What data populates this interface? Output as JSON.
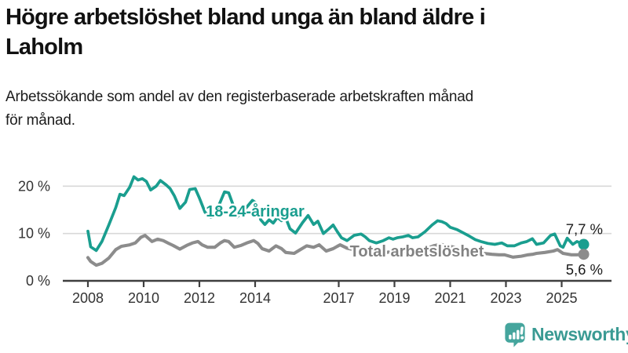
{
  "header": {
    "title_lines": [
      "Högre arbetslöshet bland unga än bland äldre i",
      "Laholm"
    ],
    "subtitle_lines": [
      "Arbetssökande som andel av den registerbaserade arbetskraften månad",
      "för månad."
    ]
  },
  "chart_data": {
    "type": "line",
    "unit": "%",
    "xlabel": "",
    "ylabel": "",
    "xlim": [
      2007.9,
      2026.2
    ],
    "ylim": [
      0,
      24
    ],
    "grid": "horizontal",
    "x_ticks": [
      {
        "value": 2008,
        "label": "2008"
      },
      {
        "value": 2010,
        "label": "2010"
      },
      {
        "value": 2012,
        "label": "2012"
      },
      {
        "value": 2014,
        "label": "2014"
      },
      {
        "value": 2017,
        "label": "2017"
      },
      {
        "value": 2019,
        "label": "2019"
      },
      {
        "value": 2021,
        "label": "2021"
      },
      {
        "value": 2023,
        "label": "2023"
      },
      {
        "value": 2025,
        "label": "2025"
      }
    ],
    "y_ticks": [
      {
        "value": 0,
        "label": "0 %"
      },
      {
        "value": 10,
        "label": "10 %"
      },
      {
        "value": 20,
        "label": "20 %"
      }
    ],
    "series": [
      {
        "name": "18-24-åringar",
        "color": "#1a9e8f",
        "end_value": 7.7,
        "end_label": "7,7 %",
        "points": [
          [
            2008.0,
            10.5
          ],
          [
            2008.1,
            7.2
          ],
          [
            2008.3,
            6.4
          ],
          [
            2008.5,
            8.3
          ],
          [
            2008.75,
            11.8
          ],
          [
            2009.0,
            15.5
          ],
          [
            2009.15,
            18.3
          ],
          [
            2009.3,
            18.0
          ],
          [
            2009.5,
            19.8
          ],
          [
            2009.65,
            22.0
          ],
          [
            2009.8,
            21.3
          ],
          [
            2009.95,
            21.6
          ],
          [
            2010.1,
            21.0
          ],
          [
            2010.25,
            19.2
          ],
          [
            2010.45,
            20.0
          ],
          [
            2010.6,
            21.2
          ],
          [
            2010.8,
            20.3
          ],
          [
            2010.95,
            19.5
          ],
          [
            2011.1,
            18.0
          ],
          [
            2011.3,
            15.3
          ],
          [
            2011.5,
            16.6
          ],
          [
            2011.65,
            19.3
          ],
          [
            2011.85,
            19.5
          ],
          [
            2012.0,
            17.5
          ],
          [
            2012.2,
            14.5
          ],
          [
            2012.4,
            13.4
          ],
          [
            2012.55,
            13.6
          ],
          [
            2012.7,
            16.0
          ],
          [
            2012.9,
            18.8
          ],
          [
            2013.05,
            18.6
          ],
          [
            2013.2,
            16.2
          ],
          [
            2013.35,
            13.5
          ],
          [
            2013.5,
            14.3
          ],
          [
            2013.7,
            15.6
          ],
          [
            2013.9,
            17.0
          ],
          [
            2014.05,
            16.4
          ],
          [
            2014.2,
            12.9
          ],
          [
            2014.35,
            11.9
          ],
          [
            2014.5,
            12.9
          ],
          [
            2014.65,
            12.2
          ],
          [
            2014.8,
            13.4
          ],
          [
            2014.95,
            12.7
          ],
          [
            2015.1,
            13.3
          ],
          [
            2015.25,
            11.0
          ],
          [
            2015.45,
            10.1
          ],
          [
            2015.7,
            12.3
          ],
          [
            2015.9,
            13.8
          ],
          [
            2016.1,
            11.9
          ],
          [
            2016.25,
            12.6
          ],
          [
            2016.45,
            10.0
          ],
          [
            2016.65,
            11.0
          ],
          [
            2016.8,
            11.8
          ],
          [
            2016.95,
            10.4
          ],
          [
            2017.1,
            9.1
          ],
          [
            2017.3,
            8.5
          ],
          [
            2017.55,
            9.6
          ],
          [
            2017.8,
            9.9
          ],
          [
            2017.95,
            9.3
          ],
          [
            2018.1,
            8.5
          ],
          [
            2018.35,
            8.0
          ],
          [
            2018.6,
            8.5
          ],
          [
            2018.8,
            9.1
          ],
          [
            2018.95,
            8.8
          ],
          [
            2019.1,
            9.1
          ],
          [
            2019.3,
            9.3
          ],
          [
            2019.5,
            9.6
          ],
          [
            2019.65,
            9.1
          ],
          [
            2019.85,
            9.3
          ],
          [
            2020.1,
            10.4
          ],
          [
            2020.35,
            11.8
          ],
          [
            2020.55,
            12.7
          ],
          [
            2020.7,
            12.5
          ],
          [
            2020.85,
            12.1
          ],
          [
            2021.0,
            11.3
          ],
          [
            2021.25,
            10.8
          ],
          [
            2021.45,
            10.2
          ],
          [
            2021.7,
            9.4
          ],
          [
            2021.9,
            8.7
          ],
          [
            2022.1,
            8.3
          ],
          [
            2022.35,
            7.9
          ],
          [
            2022.6,
            7.7
          ],
          [
            2022.85,
            8.0
          ],
          [
            2023.05,
            7.4
          ],
          [
            2023.3,
            7.4
          ],
          [
            2023.55,
            8.0
          ],
          [
            2023.75,
            8.3
          ],
          [
            2023.95,
            8.9
          ],
          [
            2024.1,
            7.7
          ],
          [
            2024.35,
            8.0
          ],
          [
            2024.6,
            9.6
          ],
          [
            2024.75,
            9.9
          ],
          [
            2024.95,
            7.4
          ],
          [
            2025.05,
            7.1
          ],
          [
            2025.2,
            9.0
          ],
          [
            2025.4,
            7.7
          ],
          [
            2025.55,
            8.3
          ],
          [
            2025.79,
            7.7
          ]
        ]
      },
      {
        "name": "Total arbetslöshet",
        "color": "#8c8c8c",
        "end_value": 5.6,
        "end_label": "5,6 %",
        "points": [
          [
            2008.0,
            4.9
          ],
          [
            2008.1,
            4.1
          ],
          [
            2008.3,
            3.3
          ],
          [
            2008.5,
            3.7
          ],
          [
            2008.75,
            4.8
          ],
          [
            2009.0,
            6.6
          ],
          [
            2009.2,
            7.3
          ],
          [
            2009.5,
            7.6
          ],
          [
            2009.7,
            8.0
          ],
          [
            2009.9,
            9.2
          ],
          [
            2010.05,
            9.6
          ],
          [
            2010.3,
            8.3
          ],
          [
            2010.5,
            8.8
          ],
          [
            2010.7,
            8.5
          ],
          [
            2010.9,
            7.9
          ],
          [
            2011.05,
            7.5
          ],
          [
            2011.3,
            6.7
          ],
          [
            2011.55,
            7.5
          ],
          [
            2011.75,
            8.0
          ],
          [
            2011.95,
            8.3
          ],
          [
            2012.1,
            7.6
          ],
          [
            2012.3,
            7.1
          ],
          [
            2012.55,
            7.1
          ],
          [
            2012.75,
            8.0
          ],
          [
            2012.9,
            8.5
          ],
          [
            2013.05,
            8.3
          ],
          [
            2013.25,
            7.1
          ],
          [
            2013.5,
            7.5
          ],
          [
            2013.7,
            8.0
          ],
          [
            2013.95,
            8.5
          ],
          [
            2014.1,
            7.9
          ],
          [
            2014.25,
            6.8
          ],
          [
            2014.5,
            6.3
          ],
          [
            2014.75,
            7.4
          ],
          [
            2014.95,
            6.8
          ],
          [
            2015.1,
            6.0
          ],
          [
            2015.4,
            5.8
          ],
          [
            2015.65,
            6.7
          ],
          [
            2015.85,
            7.4
          ],
          [
            2016.1,
            7.1
          ],
          [
            2016.3,
            7.6
          ],
          [
            2016.55,
            6.3
          ],
          [
            2016.8,
            6.8
          ],
          [
            2016.95,
            7.3
          ],
          [
            2017.05,
            7.6
          ],
          [
            2017.3,
            6.9
          ],
          [
            2017.6,
            6.5
          ],
          [
            2017.85,
            6.7
          ],
          [
            2018.1,
            6.4
          ],
          [
            2018.4,
            6.0
          ],
          [
            2018.7,
            6.0
          ],
          [
            2018.95,
            6.2
          ],
          [
            2019.2,
            6.1
          ],
          [
            2019.5,
            6.3
          ],
          [
            2019.8,
            6.4
          ],
          [
            2020.1,
            6.7
          ],
          [
            2020.4,
            7.4
          ],
          [
            2020.65,
            7.7
          ],
          [
            2020.9,
            7.4
          ],
          [
            2021.15,
            7.1
          ],
          [
            2021.45,
            6.7
          ],
          [
            2021.75,
            6.3
          ],
          [
            2021.95,
            6.1
          ],
          [
            2022.2,
            5.8
          ],
          [
            2022.5,
            5.6
          ],
          [
            2022.75,
            5.5
          ],
          [
            2022.95,
            5.5
          ],
          [
            2023.25,
            5.0
          ],
          [
            2023.55,
            5.2
          ],
          [
            2023.8,
            5.5
          ],
          [
            2023.95,
            5.6
          ],
          [
            2024.1,
            5.8
          ],
          [
            2024.4,
            6.0
          ],
          [
            2024.7,
            6.3
          ],
          [
            2024.85,
            6.6
          ],
          [
            2025.05,
            5.8
          ],
          [
            2025.35,
            5.5
          ],
          [
            2025.55,
            5.5
          ],
          [
            2025.79,
            5.6
          ]
        ]
      }
    ]
  },
  "footer": {
    "brand": "Newsworthy"
  }
}
